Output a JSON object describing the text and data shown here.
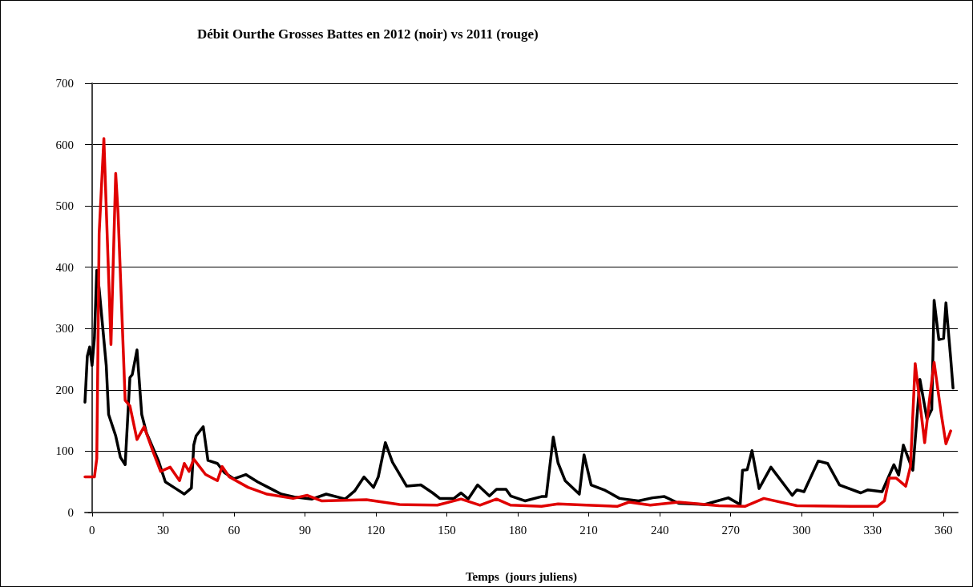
{
  "chart_data": {
    "type": "line",
    "title": "Débit Ourthe Grosses Battes en 2012 (noir) vs 2011 (rouge)",
    "xlabel": "Temps  (jours juliens)",
    "xlim": [
      -3,
      366
    ],
    "xticks": [
      0,
      30,
      60,
      90,
      120,
      150,
      180,
      210,
      240,
      270,
      300,
      330,
      360
    ],
    "ylim": [
      0,
      700
    ],
    "yticks": [
      0,
      100,
      200,
      300,
      400,
      500,
      600,
      700
    ],
    "grid": "y",
    "line_style": "solid",
    "series": [
      {
        "color": "#000000",
        "x": [
          -3,
          -2,
          -1,
          0,
          1,
          2,
          3,
          6,
          7,
          10,
          12,
          14,
          16,
          17,
          19,
          21,
          23,
          28,
          31,
          35,
          39,
          42,
          43,
          44,
          47,
          49,
          53,
          56,
          60,
          65,
          70,
          75,
          80,
          86,
          93,
          99,
          107,
          111,
          115,
          119,
          121,
          124,
          127,
          133,
          139,
          144,
          147,
          153,
          156,
          159,
          163,
          168,
          171,
          175,
          177,
          183,
          190,
          192,
          195,
          197,
          200,
          206,
          208,
          211,
          217,
          223,
          231,
          237,
          242,
          248,
          259,
          269,
          274,
          275,
          277,
          279,
          282,
          287,
          296,
          298,
          301,
          307,
          311,
          316,
          325,
          328,
          334,
          339,
          341,
          343,
          347,
          350,
          353,
          355,
          356,
          358,
          360,
          361,
          363,
          364
        ],
        "values": [
          180,
          255,
          270,
          240,
          285,
          395,
          365,
          240,
          160,
          125,
          90,
          78,
          220,
          225,
          265,
          160,
          130,
          85,
          50,
          40,
          30,
          40,
          110,
          125,
          140,
          85,
          80,
          65,
          55,
          62,
          50,
          40,
          30,
          25,
          22,
          30,
          22,
          35,
          58,
          41,
          58,
          114,
          82,
          43,
          45,
          32,
          23,
          23,
          32,
          22,
          45,
          27,
          38,
          38,
          27,
          19,
          26,
          26,
          123,
          81,
          52,
          30,
          94,
          45,
          36,
          23,
          19,
          24,
          26,
          15,
          13,
          24,
          13,
          69,
          70,
          101,
          39,
          74,
          28,
          37,
          34,
          84,
          80,
          45,
          32,
          37,
          34,
          78,
          61,
          110,
          69,
          217,
          152,
          168,
          346,
          282,
          284,
          342,
          252,
          203
        ]
      },
      {
        "color": "#e00000",
        "x": [
          -3,
          1,
          2,
          3,
          5,
          6,
          8,
          10,
          11,
          14,
          16,
          19,
          22,
          26,
          29,
          33,
          37,
          39,
          41,
          43,
          48,
          53,
          55,
          58,
          66,
          74,
          85,
          91,
          97,
          116,
          130,
          146,
          156,
          164,
          171,
          177,
          190,
          197,
          209,
          222,
          227,
          236,
          248,
          265,
          276,
          284,
          298,
          321,
          332,
          335,
          337,
          340,
          344,
          346,
          348,
          352,
          354,
          356,
          359,
          361,
          363
        ],
        "values": [
          58,
          58,
          88,
          455,
          610,
          497,
          274,
          553,
          488,
          183,
          174,
          119,
          140,
          97,
          67,
          74,
          52,
          80,
          67,
          87,
          62,
          52,
          75,
          58,
          41,
          30,
          23,
          28,
          19,
          21,
          13,
          12,
          22,
          12,
          22,
          12,
          10,
          14,
          12,
          10,
          17,
          12,
          17,
          11,
          10,
          23,
          11,
          10,
          10,
          19,
          56,
          56,
          43,
          75,
          243,
          114,
          183,
          245,
          161,
          112,
          133
        ]
      }
    ]
  }
}
